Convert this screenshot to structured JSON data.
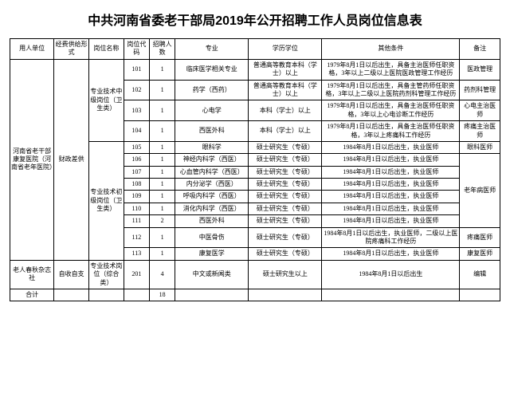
{
  "title": "中共河南省委老干部局2019年公开招聘工作人员岗位信息表",
  "headers": {
    "unit": "用人单位",
    "fund": "经费供给形式",
    "post": "岗位名称",
    "code": "岗位代码",
    "num": "招聘人数",
    "major": "专业",
    "degree": "学历学位",
    "other": "其他条件",
    "note": "备注"
  },
  "unit1": "河南省老干部康复医院（河南省老年医院）",
  "fund1": "财政差供",
  "post1": "专业技术中级岗位（卫生类）",
  "post2": "专业技术初级岗位（卫生类）",
  "unit2": "老人春秋杂志社",
  "fund2": "自收自支",
  "post3": "专业技术岗位（综合类）",
  "rows": [
    {
      "code": "101",
      "num": "1",
      "major": "临床医学相关专业",
      "degree": "普通高等教育本科（学士）以上",
      "other": "1979年8月1日以后出生，具备主治医师任职资格，3年以上二级以上医院医政管理工作经历",
      "note": "医政管理"
    },
    {
      "code": "102",
      "num": "1",
      "major": "药学（西药）",
      "degree": "普通高等教育本科（学士）以上",
      "other": "1979年8月1日以后出生，具备主管药师任职资格，3年以上二级以上医院药剂科管理工作经历",
      "note": "药剂科管理"
    },
    {
      "code": "103",
      "num": "1",
      "major": "心电学",
      "degree": "本科（学士）以上",
      "other": "1979年8月1日以后出生，具备主治医师任职资格，3年以上心电诊断工作经历",
      "note": "心电主治医师"
    },
    {
      "code": "104",
      "num": "1",
      "major": "西医外科",
      "degree": "本科（学士）以上",
      "other": "1979年8月1日以后出生，具备主治医师任职资格，3年以上疼痛科工作经历",
      "note": "疼痛主治医师"
    },
    {
      "code": "105",
      "num": "1",
      "major": "眼科学",
      "degree": "硕士研究生（专硕）",
      "other": "1984年8月1日以后出生，执业医师",
      "note": "眼科医师"
    },
    {
      "code": "106",
      "num": "1",
      "major": "神经内科学（西医）",
      "degree": "硕士研究生（专硕）",
      "other": "1984年8月1日以后出生，执业医师"
    },
    {
      "code": "107",
      "num": "1",
      "major": "心血管内科学（西医）",
      "degree": "硕士研究生（专硕）",
      "other": "1984年8月1日以后出生，执业医师"
    },
    {
      "code": "108",
      "num": "1",
      "major": "内分泌学（西医）",
      "degree": "硕士研究生（专硕）",
      "other": "1984年8月1日以后出生，执业医师"
    },
    {
      "code": "109",
      "num": "1",
      "major": "呼吸内科学（西医）",
      "degree": "硕士研究生（专硕）",
      "other": "1984年8月1日以后出生，执业医师"
    },
    {
      "code": "110",
      "num": "1",
      "major": "消化内科学（西医）",
      "degree": "硕士研究生（专硕）",
      "other": "1984年8月1日以后出生，执业医师"
    },
    {
      "code": "111",
      "num": "2",
      "major": "西医外科",
      "degree": "硕士研究生（专硕）",
      "other": "1984年8月1日以后出生，执业医师"
    },
    {
      "code": "112",
      "num": "1",
      "major": "中医骨伤",
      "degree": "硕士研究生（专硕）",
      "other": "1984年8月1日以后出生，执业医师，二级以上医院疼痛科工作经历",
      "note": "疼痛医师"
    },
    {
      "code": "113",
      "num": "1",
      "major": "康复医学",
      "degree": "硕士研究生（专硕）",
      "other": "1984年8月1日以后出生，执业医师",
      "note": "康复医师"
    },
    {
      "code": "201",
      "num": "4",
      "major": "中文或新闻类",
      "degree": "硕士研究生以上",
      "other": "1984年8月1日以后出生",
      "note": "编辑"
    }
  ],
  "note_group": "老年病医师",
  "total_label": "合计",
  "total_num": "18"
}
